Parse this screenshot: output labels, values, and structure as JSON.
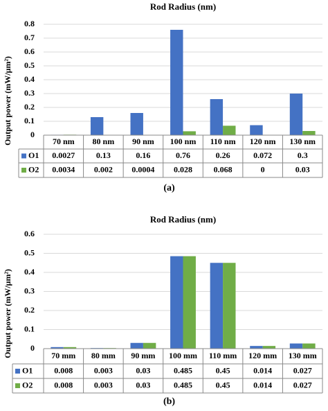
{
  "chart_data": [
    {
      "type": "bar",
      "title": "Rod Radius (nm)",
      "y_label": "Output power  (mW/μm²)",
      "caption": "(a)",
      "categories": [
        "70 nm",
        "80 nm",
        "90 nm",
        "100 nm",
        "110 nm",
        "120 nm",
        "130 nm"
      ],
      "series": [
        {
          "name": "O1",
          "color": "#4472c4",
          "values": [
            0.0027,
            0.13,
            0.16,
            0.76,
            0.26,
            0.072,
            0.3
          ]
        },
        {
          "name": "O2",
          "color": "#70ad47",
          "values": [
            0.0034,
            0.002,
            0.0004,
            0.028,
            0.068,
            0,
            0.03
          ]
        }
      ],
      "ylim": [
        0,
        0.8
      ],
      "yticks": [
        0,
        0.1,
        0.2,
        0.3,
        0.4,
        0.5,
        0.6,
        0.7,
        0.8
      ],
      "grid": true
    },
    {
      "type": "bar",
      "title": "Rod Radius (nm)",
      "y_label": "Output power  (mW/μm²)",
      "caption": "(b)",
      "categories": [
        "70 mm",
        "80 mm",
        "90 mm",
        "100 mm",
        "110 mm",
        "120 mm",
        "130 mm"
      ],
      "series": [
        {
          "name": "O1",
          "color": "#4472c4",
          "values": [
            0.008,
            0.003,
            0.03,
            0.485,
            0.45,
            0.014,
            0.027
          ]
        },
        {
          "name": "O2",
          "color": "#70ad47",
          "values": [
            0.008,
            0.003,
            0.03,
            0.485,
            0.45,
            0.014,
            0.027
          ]
        }
      ],
      "ylim": [
        0,
        0.6
      ],
      "yticks": [
        0,
        0.1,
        0.2,
        0.3,
        0.4,
        0.5,
        0.6
      ],
      "grid": true
    }
  ]
}
